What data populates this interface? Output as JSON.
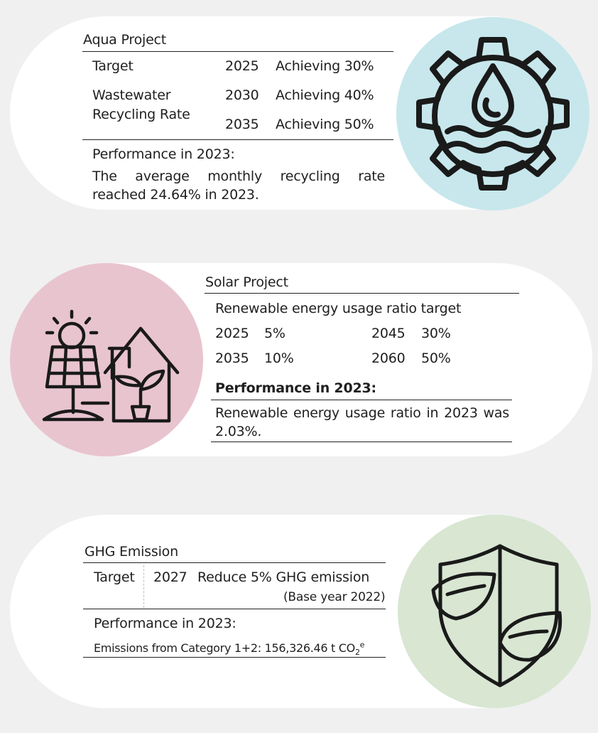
{
  "aqua": {
    "title": "Aqua Project",
    "target_label": "Target",
    "metric_label_1": "Wastewater",
    "metric_label_2": "Recycling Rate",
    "rows": [
      {
        "year": "2025",
        "goal": "Achieving 30%"
      },
      {
        "year": "2030",
        "goal": "Achieving 40%"
      },
      {
        "year": "2035",
        "goal": "Achieving 50%"
      }
    ],
    "performance_heading": "Performance in 2023:",
    "performance_text": "The average monthly recycling rate reached 24.64% in 2023.",
    "icon": "gear-water-drop-icon",
    "circle_color": "#c7e7ec"
  },
  "solar": {
    "title": "Solar Project",
    "subtitle": "Renewable energy usage ratio target",
    "targets": [
      {
        "year": "2025",
        "value": "5%"
      },
      {
        "year": "2035",
        "value": "10%"
      },
      {
        "year": "2045",
        "value": "30%"
      },
      {
        "year": "2060",
        "value": "50%"
      }
    ],
    "performance_heading": "Performance in 2023:",
    "performance_text": "Renewable energy usage ratio in 2023 was 2.03%.",
    "icon": "solar-panel-house-icon",
    "circle_color": "#e8c4cf"
  },
  "ghg": {
    "title": "GHG Emission",
    "target_label": "Target",
    "target_year": "2027",
    "target_goal": "Reduce 5% GHG emission",
    "base_year": "(Base year 2022)",
    "performance_heading": "Performance in 2023:",
    "emissions_text": "Emissions from Category 1+2: 156,326.46 t CO",
    "emissions_sub": "2",
    "emissions_sup": "e",
    "icon": "leaf-shield-icon",
    "circle_color": "#d8e6d2"
  }
}
